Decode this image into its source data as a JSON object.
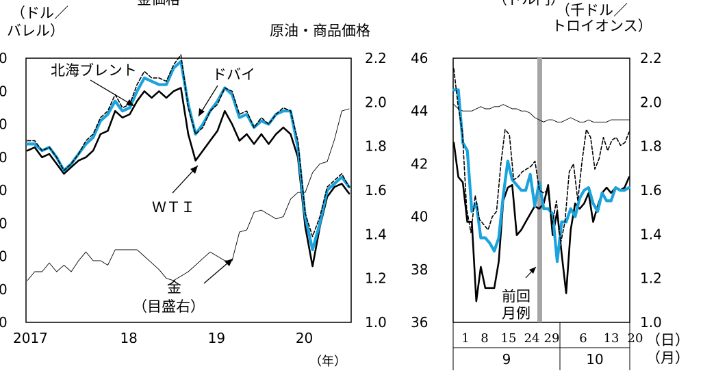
{
  "title_left": "金価格",
  "title_right": "（ドル円）",
  "unit_left": [
    "（ドル／",
    "バレル）"
  ],
  "unit_right": [
    "（千ドル／",
    "トロイオンス）"
  ],
  "subtitle": "原油・商品価格",
  "xunit_year": "（年）",
  "xunit_day": "（日）",
  "xunit_month": "（月）",
  "annotations": {
    "brent": "北海ブレント",
    "dubai": "ドバイ",
    "wti": "ＷＴＩ",
    "gold_1": "金",
    "gold_2": "（目盛右）",
    "prev_1": "前回",
    "prev_2": "月例"
  },
  "colors": {
    "brent": "#000000",
    "dubai": "#1aa3dc",
    "wti": "#000000",
    "gold": "#000000",
    "marker": "#a6a6a6"
  },
  "chart_data": [
    {
      "type": "line",
      "panel": "long-term",
      "x_tick_labels": [
        "2017",
        "18",
        "19",
        "20"
      ],
      "x": [
        "2017-01",
        "2017-02",
        "2017-03",
        "2017-04",
        "2017-05",
        "2017-06",
        "2017-07",
        "2017-08",
        "2017-09",
        "2017-10",
        "2017-11",
        "2017-12",
        "2018-01",
        "2018-02",
        "2018-03",
        "2018-04",
        "2018-05",
        "2018-06",
        "2018-07",
        "2018-08",
        "2018-09",
        "2018-10",
        "2018-11",
        "2018-12",
        "2019-01",
        "2019-02",
        "2019-03",
        "2019-04",
        "2019-05",
        "2019-06",
        "2019-07",
        "2019-08",
        "2019-09",
        "2019-10",
        "2019-11",
        "2019-12",
        "2020-01",
        "2020-02",
        "2020-03",
        "2020-04",
        "2020-05",
        "2020-06",
        "2020-07",
        "2020-08",
        "2020-09"
      ],
      "ylim_left": [
        0,
        80
      ],
      "yticks_right": [
        "1.0",
        "1.2",
        "1.4",
        "1.6",
        "1.8",
        "2.0",
        "2.2"
      ],
      "ylim_right": [
        1.0,
        2.2
      ],
      "series": [
        {
          "name": "北海ブレント",
          "axis": "left",
          "style": "dashed",
          "values": [
            55,
            55,
            52,
            53,
            50,
            46,
            48,
            51,
            55,
            57,
            62,
            64,
            69,
            65,
            66,
            72,
            76,
            74,
            74,
            73,
            78,
            81,
            65,
            57,
            59,
            64,
            66,
            71,
            70,
            63,
            64,
            59,
            62,
            60,
            63,
            65,
            64,
            55,
            33,
            26,
            32,
            41,
            43,
            45,
            41
          ]
        },
        {
          "name": "ドバイ",
          "axis": "left",
          "style": "solid-thick",
          "values": [
            54,
            54,
            52,
            53,
            50,
            46,
            48,
            51,
            54,
            56,
            61,
            63,
            67,
            64,
            65,
            70,
            74,
            73,
            72,
            72,
            77,
            79,
            66,
            57,
            60,
            64,
            67,
            71,
            69,
            62,
            63,
            59,
            61,
            60,
            63,
            64,
            64,
            53,
            32,
            22,
            30,
            40,
            42,
            44,
            41
          ]
        },
        {
          "name": "ＷＴＩ",
          "axis": "left",
          "style": "solid",
          "values": [
            52,
            53,
            50,
            51,
            48,
            45,
            47,
            49,
            50,
            52,
            57,
            58,
            64,
            62,
            63,
            67,
            70,
            68,
            70,
            68,
            70,
            71,
            57,
            49,
            52,
            55,
            58,
            64,
            60,
            55,
            57,
            54,
            57,
            54,
            57,
            59,
            57,
            50,
            29,
            17,
            29,
            38,
            41,
            42,
            39
          ]
        },
        {
          "name": "金",
          "axis": "right",
          "style": "thin",
          "values": [
            1.19,
            1.23,
            1.23,
            1.27,
            1.23,
            1.26,
            1.23,
            1.28,
            1.32,
            1.28,
            1.28,
            1.26,
            1.33,
            1.33,
            1.33,
            1.33,
            1.3,
            1.27,
            1.24,
            1.2,
            1.19,
            1.21,
            1.23,
            1.26,
            1.29,
            1.32,
            1.3,
            1.28,
            1.28,
            1.41,
            1.42,
            1.5,
            1.51,
            1.49,
            1.47,
            1.48,
            1.56,
            1.59,
            1.59,
            1.68,
            1.72,
            1.73,
            1.83,
            1.96,
            1.97
          ]
        }
      ]
    },
    {
      "type": "line",
      "panel": "daily",
      "x_tick_labels": [
        "1",
        "8",
        "15",
        "24",
        "29",
        "6",
        "13",
        "20"
      ],
      "month_labels": [
        "9",
        "10"
      ],
      "yticks_left": [
        "36",
        "38",
        "40",
        "42",
        "44",
        "46"
      ],
      "ylim_left": [
        36,
        46
      ],
      "ylim_right": [
        1.0,
        2.2
      ],
      "series": [
        {
          "name": "北海ブレント",
          "axis": "left",
          "style": "dashed",
          "values": [
            45.6,
            44.2,
            43.2,
            40.3,
            39.4,
            40.8,
            39.9,
            39.7,
            39.5,
            40.0,
            40.2,
            42.0,
            43.3,
            43.1,
            41.4,
            41.5,
            41.7,
            41.8,
            41.9,
            42.1,
            41.0,
            40.9,
            41.0,
            39.7,
            40.6,
            39.0,
            39.8,
            41.7,
            42.0,
            40.6,
            42.1,
            43.3,
            43.0,
            41.8,
            42.2,
            43.0,
            42.5,
            42.9,
            43.0,
            42.7,
            42.8,
            43.2
          ]
        },
        {
          "name": "ドバイ",
          "axis": "left",
          "style": "solid-thick",
          "values": [
            44.8,
            44.8,
            42.8,
            42.5,
            40.2,
            40.5,
            39.2,
            39.2,
            39.0,
            38.7,
            39.2,
            40.8,
            42.1,
            41.4,
            41.2,
            41.0,
            41.0,
            41.6,
            40.4,
            41.3,
            40.3,
            40.3,
            40.1,
            38.3,
            39.8,
            39.8,
            40.3,
            40.0,
            40.7,
            41.0,
            41.1,
            40.5,
            40.2,
            40.9,
            40.6,
            40.6,
            41.1,
            41.0,
            41.0,
            41.1
          ]
        },
        {
          "name": "ＷＴＩ",
          "axis": "left",
          "style": "solid",
          "values": [
            42.8,
            41.5,
            41.3,
            39.8,
            39.8,
            36.8,
            38.1,
            37.3,
            37.3,
            37.3,
            38.3,
            40.6,
            41.1,
            41.2,
            39.3,
            39.5,
            39.8,
            40.1,
            40.4,
            40.3,
            40.5,
            41.2,
            39.3,
            40.2,
            38.6,
            37.1,
            39.5,
            40.5,
            40.3,
            40.5,
            40.9,
            39.8,
            40.4,
            40.9,
            41.1,
            40.9,
            41.1,
            41.0,
            41.1,
            41.5
          ]
        },
        {
          "name": "金",
          "axis": "right",
          "style": "thin",
          "values": [
            1.99,
            1.97,
            1.96,
            1.96,
            1.96,
            1.97,
            1.98,
            1.97,
            1.97,
            1.98,
            1.98,
            1.99,
            1.98,
            1.97,
            1.97,
            1.96,
            1.96,
            1.95,
            1.93,
            1.92,
            1.91,
            1.92,
            1.92,
            1.91,
            1.91,
            1.92,
            1.93,
            1.92,
            1.91,
            1.91,
            1.92,
            1.91,
            1.91,
            1.91,
            1.91,
            1.92,
            1.92,
            1.92,
            1.92,
            1.92
          ]
        }
      ],
      "marker_position_index": 20
    }
  ]
}
